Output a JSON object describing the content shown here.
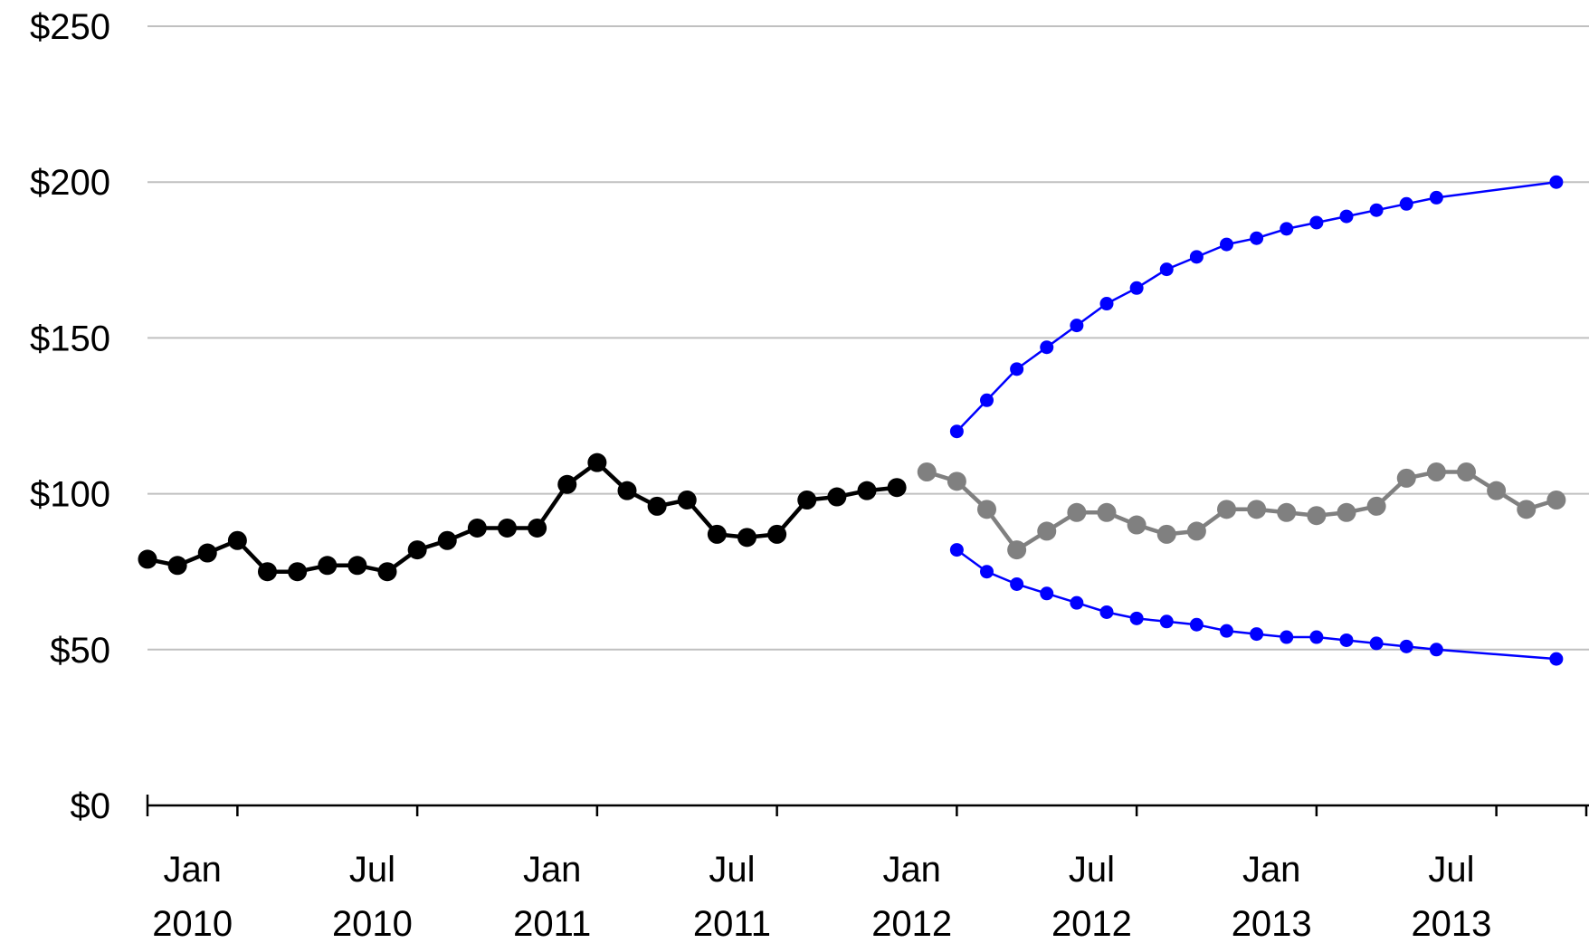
{
  "chart_data": {
    "type": "line",
    "title": "",
    "xlabel": "",
    "ylabel": "",
    "ylim": [
      0,
      250
    ],
    "grid": true,
    "legend": "none",
    "y_ticks": [
      {
        "value": 0,
        "label": "$0"
      },
      {
        "value": 50,
        "label": "$50"
      },
      {
        "value": 100,
        "label": "$100"
      },
      {
        "value": 150,
        "label": "$150"
      },
      {
        "value": 200,
        "label": "$200"
      },
      {
        "value": 250,
        "label": "$250"
      }
    ],
    "x_ticks": [
      {
        "month": "2010-01",
        "label": [
          "Jan",
          "2010"
        ]
      },
      {
        "month": "2010-07",
        "label": [
          "Jul",
          "2010"
        ]
      },
      {
        "month": "2011-01",
        "label": [
          "Jan",
          "2011"
        ]
      },
      {
        "month": "2011-07",
        "label": [
          "Jul",
          "2011"
        ]
      },
      {
        "month": "2012-01",
        "label": [
          "Jan",
          "2012"
        ]
      },
      {
        "month": "2012-07",
        "label": [
          "Jul",
          "2012"
        ]
      },
      {
        "month": "2013-01",
        "label": [
          "Jan",
          "2013"
        ]
      },
      {
        "month": "2013-07",
        "label": [
          "Jul",
          "2013"
        ]
      }
    ],
    "x_minor_ticks": [
      "2010-04",
      "2010-10",
      "2011-04",
      "2011-10",
      "2012-04",
      "2012-10",
      "2013-04",
      "2013-10",
      "2014-01"
    ],
    "x_range": [
      "2010-01",
      "2014-01"
    ],
    "series": [
      {
        "color": "#000000",
        "marker_size": "large",
        "x": [
          "2010-01",
          "2010-02",
          "2010-03",
          "2010-04",
          "2010-05",
          "2010-06",
          "2010-07",
          "2010-08",
          "2010-09",
          "2010-10",
          "2010-11",
          "2010-12",
          "2011-01",
          "2011-02",
          "2011-03",
          "2011-04",
          "2011-05",
          "2011-06",
          "2011-07",
          "2011-08",
          "2011-09",
          "2011-10",
          "2011-11",
          "2011-12",
          "2012-01",
          "2012-02"
        ],
        "values": [
          79,
          77,
          81,
          85,
          75,
          75,
          77,
          77,
          75,
          82,
          85,
          89,
          89,
          89,
          103,
          110,
          101,
          96,
          98,
          87,
          86,
          87,
          98,
          99,
          101,
          102
        ]
      },
      {
        "color": "#808080",
        "marker_size": "large",
        "x": [
          "2012-03",
          "2012-04",
          "2012-05",
          "2012-06",
          "2012-07",
          "2012-08",
          "2012-09",
          "2012-10",
          "2012-11",
          "2012-12",
          "2013-01",
          "2013-02",
          "2013-03",
          "2013-04",
          "2013-05",
          "2013-06",
          "2013-07",
          "2013-08",
          "2013-09",
          "2013-10",
          "2013-11",
          "2013-12"
        ],
        "values": [
          107,
          104,
          95,
          82,
          88,
          94,
          94,
          90,
          87,
          88,
          95,
          95,
          94,
          93,
          94,
          96,
          105,
          107,
          107,
          101,
          95,
          98
        ]
      },
      {
        "color": "#0000ff",
        "marker_size": "small",
        "x": [
          "2012-04",
          "2012-05",
          "2012-06",
          "2012-07",
          "2012-08",
          "2012-09",
          "2012-10",
          "2012-11",
          "2012-12",
          "2013-01",
          "2013-02",
          "2013-03",
          "2013-04",
          "2013-05",
          "2013-06",
          "2013-07",
          "2013-08",
          "2013-12"
        ],
        "values": [
          120,
          130,
          140,
          147,
          154,
          161,
          166,
          172,
          176,
          180,
          182,
          185,
          187,
          189,
          191,
          193,
          195,
          200
        ]
      },
      {
        "color": "#0000ff",
        "marker_size": "small",
        "x": [
          "2012-04",
          "2012-05",
          "2012-06",
          "2012-07",
          "2012-08",
          "2012-09",
          "2012-10",
          "2012-11",
          "2012-12",
          "2013-01",
          "2013-02",
          "2013-03",
          "2013-04",
          "2013-05",
          "2013-06",
          "2013-07",
          "2013-08",
          "2013-12"
        ],
        "values": [
          82,
          75,
          71,
          68,
          65,
          62,
          60,
          59,
          58,
          56,
          55,
          54,
          54,
          53,
          52,
          51,
          50,
          47
        ]
      }
    ]
  }
}
